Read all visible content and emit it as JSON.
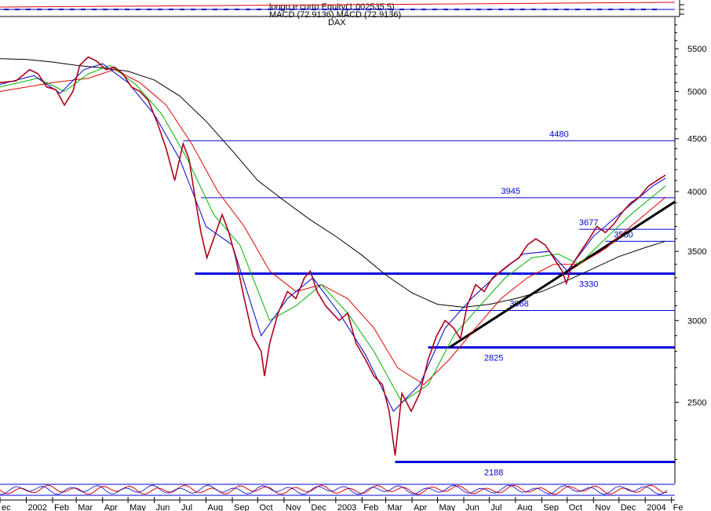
{
  "header": {
    "line1": "longo e curto Equity(1,002535,5)",
    "line2": "MACD (72.9136),MACD (72.9136)",
    "line3": "DAX"
  },
  "colors": {
    "price": "#b0001a",
    "ma_fast": "#0000cc",
    "ma_green": "#00b000",
    "ma_red": "#e00000",
    "ma_long": "#000000",
    "levels": "#0000dd",
    "trend": "#000000",
    "axis": "#000000",
    "text": "#000000"
  },
  "chart_data": {
    "type": "line",
    "title": "DAX",
    "yscale": "log",
    "ylim": [
      2100,
      5900
    ],
    "y_ticks": [
      2500,
      3000,
      3500,
      4000,
      4500,
      5000,
      5500
    ],
    "x_range": [
      "2001-12-01",
      "2004-02-05"
    ],
    "x_tick_labels": [
      {
        "date": "2001-12-01",
        "label": "ec"
      },
      {
        "date": "2002-01-01",
        "label": "2002"
      },
      {
        "date": "2002-02-01",
        "label": "Feb"
      },
      {
        "date": "2002-03-01",
        "label": "Mar"
      },
      {
        "date": "2002-04-01",
        "label": "Apr"
      },
      {
        "date": "2002-05-01",
        "label": "May"
      },
      {
        "date": "2002-06-01",
        "label": "Jun"
      },
      {
        "date": "2002-07-01",
        "label": "Jul"
      },
      {
        "date": "2002-08-01",
        "label": "Aug"
      },
      {
        "date": "2002-09-01",
        "label": "Sep"
      },
      {
        "date": "2002-10-01",
        "label": "Oct"
      },
      {
        "date": "2002-11-01",
        "label": "Nov"
      },
      {
        "date": "2002-12-01",
        "label": "Dec"
      },
      {
        "date": "2003-01-01",
        "label": "2003"
      },
      {
        "date": "2003-02-01",
        "label": "Feb"
      },
      {
        "date": "2003-03-01",
        "label": "Mar"
      },
      {
        "date": "2003-04-01",
        "label": "Apr"
      },
      {
        "date": "2003-05-01",
        "label": "May"
      },
      {
        "date": "2003-06-01",
        "label": "Jun"
      },
      {
        "date": "2003-07-01",
        "label": "Jul"
      },
      {
        "date": "2003-08-01",
        "label": "Aug"
      },
      {
        "date": "2003-09-01",
        "label": "Sep"
      },
      {
        "date": "2003-10-01",
        "label": "Oct"
      },
      {
        "date": "2003-11-01",
        "label": "Nov"
      },
      {
        "date": "2003-12-01",
        "label": "Dec"
      },
      {
        "date": "2004-01-01",
        "label": "2004"
      },
      {
        "date": "2004-02-01",
        "label": "Fe"
      }
    ],
    "series": [
      {
        "key": "price",
        "values": [
          [
            "2001-12-01",
            5100
          ],
          [
            "2001-12-20",
            5120
          ],
          [
            "2002-01-05",
            5250
          ],
          [
            "2002-01-15",
            5200
          ],
          [
            "2002-01-25",
            5050
          ],
          [
            "2002-02-05",
            5020
          ],
          [
            "2002-02-15",
            4850
          ],
          [
            "2002-02-25",
            5000
          ],
          [
            "2002-03-05",
            5300
          ],
          [
            "2002-03-15",
            5400
          ],
          [
            "2002-03-25",
            5350
          ],
          [
            "2002-04-05",
            5250
          ],
          [
            "2002-04-15",
            5280
          ],
          [
            "2002-04-25",
            5200
          ],
          [
            "2002-05-05",
            5050
          ],
          [
            "2002-05-15",
            5000
          ],
          [
            "2002-05-25",
            4900
          ],
          [
            "2002-06-05",
            4650
          ],
          [
            "2002-06-15",
            4400
          ],
          [
            "2002-06-25",
            4100
          ],
          [
            "2002-07-05",
            4450
          ],
          [
            "2002-07-12",
            4300
          ],
          [
            "2002-07-20",
            3900
          ],
          [
            "2002-07-26",
            3650
          ],
          [
            "2002-08-02",
            3450
          ],
          [
            "2002-08-10",
            3600
          ],
          [
            "2002-08-20",
            3800
          ],
          [
            "2002-08-28",
            3650
          ],
          [
            "2002-09-05",
            3450
          ],
          [
            "2002-09-15",
            3150
          ],
          [
            "2002-09-25",
            2900
          ],
          [
            "2002-10-05",
            2800
          ],
          [
            "2002-10-09",
            2650
          ],
          [
            "2002-10-15",
            2850
          ],
          [
            "2002-10-25",
            3050
          ],
          [
            "2002-11-05",
            3200
          ],
          [
            "2002-11-15",
            3150
          ],
          [
            "2002-11-25",
            3300
          ],
          [
            "2002-12-02",
            3350
          ],
          [
            "2002-12-10",
            3200
          ],
          [
            "2002-12-20",
            3100
          ],
          [
            "2003-01-05",
            3000
          ],
          [
            "2003-01-15",
            3050
          ],
          [
            "2003-01-25",
            2850
          ],
          [
            "2003-02-05",
            2750
          ],
          [
            "2003-02-15",
            2650
          ],
          [
            "2003-02-25",
            2600
          ],
          [
            "2003-03-05",
            2450
          ],
          [
            "2003-03-12",
            2220
          ],
          [
            "2003-03-20",
            2550
          ],
          [
            "2003-03-31",
            2450
          ],
          [
            "2003-04-10",
            2550
          ],
          [
            "2003-04-20",
            2750
          ],
          [
            "2003-04-30",
            2900
          ],
          [
            "2003-05-10",
            3000
          ],
          [
            "2003-05-20",
            2950
          ],
          [
            "2003-05-28",
            2880
          ],
          [
            "2003-06-05",
            3100
          ],
          [
            "2003-06-15",
            3250
          ],
          [
            "2003-06-25",
            3200
          ],
          [
            "2003-07-05",
            3300
          ],
          [
            "2003-07-15",
            3350
          ],
          [
            "2003-07-25",
            3400
          ],
          [
            "2003-08-05",
            3450
          ],
          [
            "2003-08-15",
            3550
          ],
          [
            "2003-08-25",
            3600
          ],
          [
            "2003-09-05",
            3550
          ],
          [
            "2003-09-15",
            3450
          ],
          [
            "2003-09-25",
            3350
          ],
          [
            "2003-09-30",
            3260
          ],
          [
            "2003-10-07",
            3400
          ],
          [
            "2003-10-17",
            3500
          ],
          [
            "2003-10-27",
            3600
          ],
          [
            "2003-11-05",
            3700
          ],
          [
            "2003-11-15",
            3650
          ],
          [
            "2003-11-25",
            3720
          ],
          [
            "2003-12-05",
            3820
          ],
          [
            "2003-12-15",
            3900
          ],
          [
            "2003-12-25",
            3950
          ],
          [
            "2004-01-05",
            4050
          ],
          [
            "2004-01-15",
            4100
          ],
          [
            "2004-01-25",
            4150
          ]
        ]
      },
      {
        "key": "ma_fast",
        "values": [
          [
            "2001-12-01",
            5080
          ],
          [
            "2002-01-10",
            5180
          ],
          [
            "2002-02-10",
            4980
          ],
          [
            "2002-03-10",
            5250
          ],
          [
            "2002-04-01",
            5320
          ],
          [
            "2002-05-01",
            5100
          ],
          [
            "2002-06-01",
            4750
          ],
          [
            "2002-07-01",
            4300
          ],
          [
            "2002-08-01",
            3700
          ],
          [
            "2002-09-01",
            3550
          ],
          [
            "2002-10-05",
            2900
          ],
          [
            "2002-11-05",
            3150
          ],
          [
            "2002-12-05",
            3300
          ],
          [
            "2003-01-05",
            3050
          ],
          [
            "2003-02-05",
            2780
          ],
          [
            "2003-03-10",
            2450
          ],
          [
            "2003-04-10",
            2600
          ],
          [
            "2003-05-10",
            2950
          ],
          [
            "2003-06-10",
            3150
          ],
          [
            "2003-07-10",
            3320
          ],
          [
            "2003-08-10",
            3480
          ],
          [
            "2003-09-10",
            3500
          ],
          [
            "2003-10-01",
            3350
          ],
          [
            "2003-11-01",
            3620
          ],
          [
            "2003-12-01",
            3800
          ],
          [
            "2004-01-10",
            4050
          ],
          [
            "2004-01-25",
            4120
          ]
        ]
      },
      {
        "key": "ma_green",
        "values": [
          [
            "2001-12-01",
            5050
          ],
          [
            "2002-01-15",
            5150
          ],
          [
            "2002-02-15",
            5000
          ],
          [
            "2002-03-15",
            5200
          ],
          [
            "2002-04-10",
            5300
          ],
          [
            "2002-05-10",
            5080
          ],
          [
            "2002-06-10",
            4750
          ],
          [
            "2002-07-10",
            4300
          ],
          [
            "2002-08-10",
            3800
          ],
          [
            "2002-09-10",
            3550
          ],
          [
            "2002-10-15",
            3000
          ],
          [
            "2002-11-15",
            3100
          ],
          [
            "2002-12-15",
            3250
          ],
          [
            "2003-01-15",
            3050
          ],
          [
            "2003-02-15",
            2800
          ],
          [
            "2003-03-20",
            2500
          ],
          [
            "2003-04-20",
            2600
          ],
          [
            "2003-05-20",
            2900
          ],
          [
            "2003-06-20",
            3100
          ],
          [
            "2003-07-20",
            3300
          ],
          [
            "2003-08-20",
            3450
          ],
          [
            "2003-09-20",
            3480
          ],
          [
            "2003-10-15",
            3400
          ],
          [
            "2003-11-15",
            3600
          ],
          [
            "2003-12-15",
            3800
          ],
          [
            "2004-01-25",
            4050
          ]
        ]
      },
      {
        "key": "ma_red",
        "values": [
          [
            "2001-12-01",
            5000
          ],
          [
            "2002-02-01",
            5100
          ],
          [
            "2002-03-15",
            5150
          ],
          [
            "2002-04-15",
            5250
          ],
          [
            "2002-05-15",
            5100
          ],
          [
            "2002-06-15",
            4850
          ],
          [
            "2002-07-15",
            4450
          ],
          [
            "2002-08-15",
            4000
          ],
          [
            "2002-09-15",
            3700
          ],
          [
            "2002-10-15",
            3350
          ],
          [
            "2002-11-15",
            3200
          ],
          [
            "2002-12-15",
            3250
          ],
          [
            "2003-01-15",
            3150
          ],
          [
            "2003-02-15",
            2950
          ],
          [
            "2003-03-15",
            2700
          ],
          [
            "2003-04-15",
            2600
          ],
          [
            "2003-05-15",
            2750
          ],
          [
            "2003-06-15",
            2950
          ],
          [
            "2003-07-15",
            3150
          ],
          [
            "2003-08-15",
            3300
          ],
          [
            "2003-09-15",
            3400
          ],
          [
            "2003-10-15",
            3400
          ],
          [
            "2003-11-15",
            3520
          ],
          [
            "2003-12-15",
            3700
          ],
          [
            "2004-01-25",
            3950
          ]
        ]
      },
      {
        "key": "ma_long",
        "values": [
          [
            "2001-12-01",
            5380
          ],
          [
            "2002-01-01",
            5370
          ],
          [
            "2002-02-01",
            5340
          ],
          [
            "2002-03-01",
            5300
          ],
          [
            "2002-04-01",
            5270
          ],
          [
            "2002-05-01",
            5230
          ],
          [
            "2002-06-01",
            5130
          ],
          [
            "2002-07-01",
            4950
          ],
          [
            "2002-08-01",
            4680
          ],
          [
            "2002-09-01",
            4380
          ],
          [
            "2002-10-01",
            4100
          ],
          [
            "2002-11-01",
            3920
          ],
          [
            "2002-12-01",
            3760
          ],
          [
            "2003-01-01",
            3620
          ],
          [
            "2003-02-01",
            3470
          ],
          [
            "2003-03-01",
            3320
          ],
          [
            "2003-04-01",
            3190
          ],
          [
            "2003-05-01",
            3110
          ],
          [
            "2003-06-01",
            3090
          ],
          [
            "2003-07-01",
            3110
          ],
          [
            "2003-08-01",
            3150
          ],
          [
            "2003-09-01",
            3200
          ],
          [
            "2003-10-01",
            3280
          ],
          [
            "2003-11-01",
            3370
          ],
          [
            "2003-12-01",
            3460
          ],
          [
            "2004-01-01",
            3530
          ],
          [
            "2004-01-25",
            3580
          ]
        ]
      }
    ],
    "levels": [
      {
        "value": 4480,
        "label": "4480",
        "from": "2002-07-05",
        "label_date": "2003-09-10",
        "thick": false
      },
      {
        "value": 3945,
        "label": "3945",
        "from": "2002-07-26",
        "label_date": "2003-07-15",
        "thick": false
      },
      {
        "value": 3677,
        "label": "3677",
        "from": "2003-10-15",
        "label_date": "2003-10-15",
        "thick": false
      },
      {
        "value": 3580,
        "label": "3580",
        "from": "2003-11-15",
        "label_date": "2003-11-25",
        "thick": false
      },
      {
        "value": 3330,
        "label": "3330",
        "from": "2002-07-19",
        "label_date": "2003-10-15",
        "thick": true
      },
      {
        "value": 3068,
        "label": "3068",
        "from": "2003-05-15",
        "label_date": "2003-07-25",
        "thick": false
      },
      {
        "value": 2825,
        "label": "2825",
        "from": "2003-04-20",
        "label_date": "2003-06-25",
        "thick": true
      },
      {
        "value": 2188,
        "label": "2188",
        "from": "2003-03-12",
        "label_date": "2003-06-25",
        "thick": true
      }
    ],
    "trendline": {
      "from": [
        "2003-05-15",
        2825
      ],
      "to": [
        "2004-02-05",
        3910
      ]
    }
  }
}
